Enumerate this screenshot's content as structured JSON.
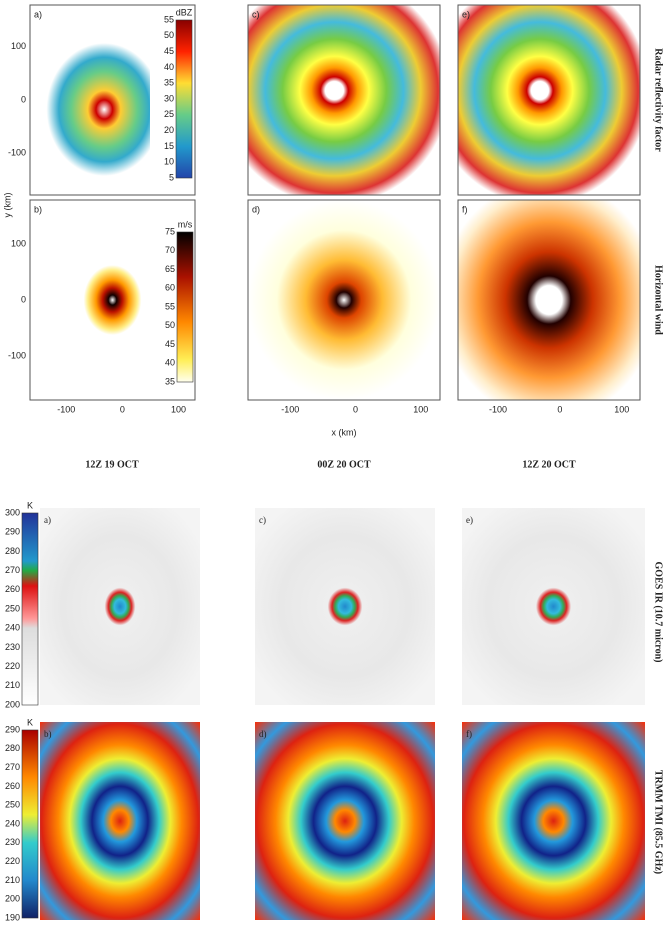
{
  "top_figure": {
    "panels": [
      "a)",
      "c)",
      "e)",
      "b)",
      "d)",
      "f)"
    ],
    "y_ticks": [
      "100",
      "0",
      "-100"
    ],
    "x_ticks": [
      "-100",
      "0",
      "100"
    ],
    "y_label": "y (km)",
    "x_label": "x (km)",
    "reflectivity_unit": "dBZ",
    "reflectivity_ticks": [
      "55",
      "50",
      "45",
      "40",
      "35",
      "30",
      "25",
      "20",
      "15",
      "10",
      "5"
    ],
    "wind_unit": "m/s",
    "wind_ticks": [
      "75",
      "70",
      "65",
      "60",
      "55",
      "50",
      "45",
      "40",
      "35"
    ],
    "row_labels": [
      "Radar reflectivity factor",
      "Horizontal wind"
    ],
    "times": [
      "12Z  19 OCT",
      "00Z  20 OCT",
      "12Z  20 OCT"
    ]
  },
  "bottom_figure": {
    "panels": [
      "a)",
      "c)",
      "e)",
      "b)",
      "d)",
      "f)"
    ],
    "ir_unit": "K",
    "ir_ticks": [
      "300",
      "290",
      "280",
      "270",
      "260",
      "250",
      "240",
      "230",
      "220",
      "210",
      "200"
    ],
    "mw_unit": "K",
    "mw_ticks": [
      "290",
      "280",
      "270",
      "260",
      "250",
      "240",
      "230",
      "220",
      "210",
      "200",
      "190"
    ],
    "row_labels": [
      "GOES IR (10.7 micron)",
      "TRMM TMI (85.5 GHz)"
    ]
  }
}
